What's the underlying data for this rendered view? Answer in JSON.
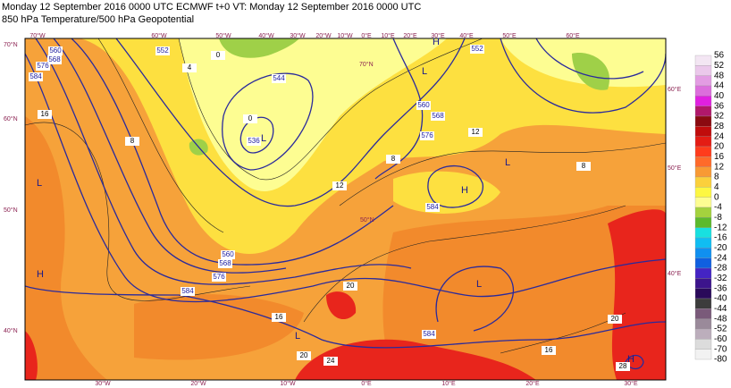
{
  "header": {
    "title": "Monday 12 September 2016 0000 UTC  ECMWF  t+0  VT: Monday 12 September 2016 0000 UTC",
    "subtitle": "850 hPa Temperature/500 hPa Geopotential"
  },
  "map": {
    "lon_labels_top": [
      "70°W",
      "60°W",
      "50°W",
      "40°W",
      "30°W",
      "20°W",
      "10°W",
      "0°E",
      "10°E",
      "20°E",
      "30°E",
      "40°E",
      "50°E",
      "60°E"
    ],
    "lon_labels_bottom": [
      "30°W",
      "20°W",
      "10°W",
      "0°E",
      "10°E",
      "20°E",
      "30°E"
    ],
    "lat_labels_left": [
      "70°N",
      "60°N",
      "50°N",
      "40°N"
    ],
    "lat_labels_right": [
      "60°E",
      "50°E",
      "40°E"
    ],
    "lat_labels_inner": [
      "70°N",
      "50°N"
    ],
    "pressure_centers": [
      "H",
      "L",
      "L",
      "L",
      "H",
      "L",
      "H",
      "L",
      "L",
      "H"
    ],
    "geopotential_labels": [
      "560",
      "568",
      "576",
      "584",
      "552",
      "544",
      "536",
      "560",
      "568",
      "576",
      "584",
      "560",
      "568",
      "576",
      "584",
      "584",
      "552"
    ],
    "temperature_labels": [
      "16",
      "8",
      "4",
      "0",
      "0",
      "12",
      "8",
      "12",
      "8",
      "20",
      "16",
      "20",
      "24",
      "16",
      "20",
      "28"
    ]
  },
  "colorbar": {
    "labels": [
      "56",
      "52",
      "48",
      "44",
      "40",
      "36",
      "32",
      "28",
      "24",
      "20",
      "16",
      "12",
      "8",
      "4",
      "0",
      "-4",
      "-8",
      "-12",
      "-16",
      "-20",
      "-24",
      "-28",
      "-32",
      "-36",
      "-40",
      "-44",
      "-48",
      "-52",
      "-60",
      "-70",
      "-80"
    ],
    "colors": [
      "#f3e6f3",
      "#ebc8eb",
      "#e39ce3",
      "#dc6edc",
      "#e020e0",
      "#b0186a",
      "#8a0a10",
      "#c00c0c",
      "#e41c14",
      "#ff3c1c",
      "#ff6a2a",
      "#f89a34",
      "#fbd03c",
      "#fdf742",
      "#fdfd92",
      "#a4d23e",
      "#5cba2c",
      "#18e0e0",
      "#10bdf2",
      "#1090f0",
      "#1060e0",
      "#4424c4",
      "#3c148c",
      "#2a0a5a",
      "#3c3c3c",
      "#7a5a7a",
      "#9a8a9a",
      "#bcaebc",
      "#dcdcdc",
      "#f2f2f2"
    ]
  }
}
